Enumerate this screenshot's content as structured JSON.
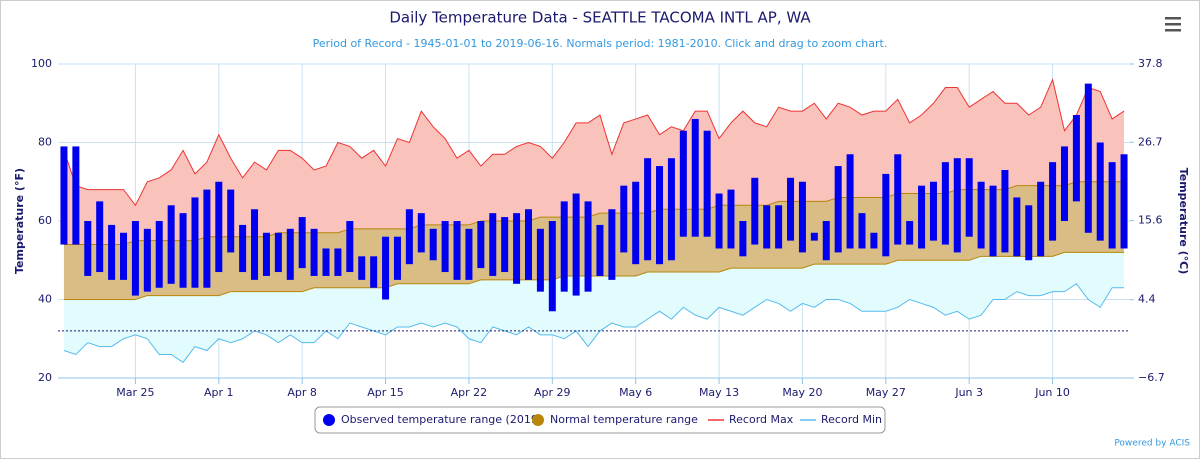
{
  "chart_data": {
    "type": "range",
    "title": "Daily Temperature Data - SEATTLE TACOMA INTL AP, WA",
    "subtitle": "Period of Record - 1945-01-01 to 2019-06-16. Normals period: 1981-2010. Click and drag to zoom chart.",
    "ylabel": "Temperature (°F)",
    "y2label": "Temperature (°C)",
    "credit": "Powered by ACIS",
    "categories": [
      null,
      null,
      null,
      null,
      null,
      null,
      "Mar 25",
      null,
      null,
      null,
      null,
      null,
      null,
      "Apr 1",
      null,
      null,
      null,
      null,
      null,
      null,
      "Apr 8",
      null,
      null,
      null,
      null,
      null,
      null,
      "Apr 15",
      null,
      null,
      null,
      null,
      null,
      null,
      "Apr 22",
      null,
      null,
      null,
      null,
      null,
      null,
      "Apr 29",
      null,
      null,
      null,
      null,
      null,
      null,
      "May 6",
      null,
      null,
      null,
      null,
      null,
      null,
      "May 13",
      null,
      null,
      null,
      null,
      null,
      null,
      "May 20",
      null,
      null,
      null,
      null,
      null,
      null,
      "May 27",
      null,
      null,
      null,
      null,
      null,
      null,
      "Jun 3",
      null,
      null,
      null,
      null,
      null,
      null,
      "Jun 10",
      null,
      null,
      null,
      null,
      null,
      null
    ],
    "ylim": [
      20,
      100
    ],
    "yticks": [
      20,
      40,
      60,
      80,
      100
    ],
    "y2lim": [
      -6.7,
      37.8
    ],
    "y2ticks": [
      {
        "value": -6.7,
        "label": "−6.7"
      },
      4.4,
      15.6,
      26.7,
      37.8
    ],
    "grid": true,
    "reference_line": 32,
    "series": [
      {
        "name": "Observed temperature range (2019)",
        "color": "#0000ee",
        "kind": "bars",
        "low": [
          54,
          54,
          46,
          47,
          45,
          45,
          41,
          42,
          43,
          44,
          43,
          43,
          43,
          47,
          52,
          47,
          45,
          46,
          47,
          45,
          48,
          46,
          46,
          46,
          47,
          45,
          43,
          40,
          45,
          49,
          52,
          50,
          47,
          45,
          45,
          48,
          46,
          47,
          44,
          45,
          42,
          37,
          42,
          41,
          42,
          46,
          45,
          52,
          49,
          50,
          49,
          50,
          56,
          56,
          56,
          53,
          53,
          51,
          54,
          53,
          53,
          55,
          52,
          55,
          50,
          52,
          53,
          53,
          53,
          51,
          54,
          54,
          53,
          55,
          54,
          52,
          56,
          53,
          51,
          52,
          51,
          50,
          51,
          55,
          60,
          65,
          57,
          55,
          53,
          53
        ],
        "high": [
          79,
          79,
          60,
          65,
          59,
          57,
          60,
          58,
          60,
          64,
          62,
          66,
          68,
          70,
          68,
          59,
          63,
          57,
          57,
          58,
          61,
          58,
          53,
          53,
          60,
          51,
          51,
          56,
          56,
          63,
          62,
          58,
          60,
          60,
          58,
          60,
          62,
          61,
          62,
          63,
          58,
          60,
          65,
          67,
          65,
          59,
          63,
          69,
          70,
          76,
          74,
          76,
          83,
          86,
          83,
          67,
          68,
          60,
          71,
          64,
          64,
          71,
          70,
          57,
          60,
          74,
          77,
          62,
          57,
          72,
          77,
          60,
          69,
          70,
          75,
          76,
          76,
          70,
          69,
          73,
          66,
          64,
          70,
          75,
          79,
          87,
          95,
          80,
          75,
          77
        ]
      },
      {
        "name": "Normal temperature range",
        "color": "#b8860b",
        "fill": "#d9bd84",
        "kind": "band",
        "low": [
          40,
          40,
          40,
          40,
          40,
          40,
          40,
          41,
          41,
          41,
          41,
          41,
          41,
          41,
          42,
          42,
          42,
          42,
          42,
          42,
          42,
          43,
          43,
          43,
          43,
          43,
          43,
          43,
          44,
          44,
          44,
          44,
          44,
          44,
          44,
          45,
          45,
          45,
          45,
          45,
          45,
          45,
          46,
          46,
          46,
          46,
          46,
          46,
          46,
          47,
          47,
          47,
          47,
          47,
          47,
          47,
          48,
          48,
          48,
          48,
          48,
          48,
          48,
          49,
          49,
          49,
          49,
          49,
          49,
          49,
          50,
          50,
          50,
          50,
          50,
          50,
          50,
          51,
          51,
          51,
          51,
          51,
          51,
          51,
          52,
          52,
          52,
          52,
          52,
          52
        ],
        "high": [
          54,
          54,
          54,
          54,
          54,
          54,
          55,
          55,
          55,
          55,
          55,
          55,
          56,
          56,
          56,
          56,
          56,
          56,
          57,
          57,
          57,
          57,
          57,
          57,
          58,
          58,
          58,
          58,
          58,
          58,
          59,
          59,
          59,
          59,
          59,
          60,
          60,
          60,
          60,
          60,
          61,
          61,
          61,
          61,
          61,
          62,
          62,
          62,
          62,
          62,
          63,
          63,
          63,
          63,
          63,
          64,
          64,
          64,
          64,
          64,
          65,
          65,
          65,
          65,
          65,
          66,
          66,
          66,
          66,
          66,
          67,
          67,
          67,
          67,
          67,
          68,
          68,
          68,
          68,
          68,
          69,
          69,
          69,
          69,
          69,
          70,
          70,
          70,
          70,
          70
        ]
      },
      {
        "name": "Record Max",
        "color": "#ee3333",
        "fill": "#f9c2bb",
        "kind": "line",
        "values": [
          78,
          69,
          68,
          68,
          68,
          68,
          64,
          70,
          71,
          73,
          78,
          72,
          75,
          82,
          76,
          71,
          75,
          73,
          78,
          78,
          76,
          73,
          74,
          80,
          79,
          76,
          78,
          74,
          81,
          80,
          88,
          84,
          81,
          76,
          78,
          74,
          77,
          77,
          79,
          80,
          79,
          76,
          80,
          85,
          85,
          87,
          77,
          85,
          86,
          87,
          82,
          84,
          83,
          88,
          88,
          81,
          85,
          88,
          85,
          84,
          89,
          88,
          88,
          90,
          86,
          90,
          89,
          87,
          88,
          88,
          91,
          85,
          87,
          90,
          94,
          94,
          89,
          91,
          93,
          90,
          90,
          87,
          89,
          96,
          83,
          87,
          94,
          93,
          86,
          88
        ]
      },
      {
        "name": "Record Min",
        "color": "#55bbee",
        "fill": "#e2fcfd",
        "kind": "line",
        "values": [
          27,
          26,
          29,
          28,
          28,
          30,
          31,
          30,
          26,
          26,
          24,
          28,
          27,
          30,
          29,
          30,
          32,
          31,
          29,
          31,
          29,
          29,
          32,
          30,
          34,
          33,
          32,
          31,
          33,
          33,
          34,
          33,
          34,
          33,
          30,
          29,
          33,
          32,
          31,
          33,
          31,
          31,
          30,
          32,
          28,
          32,
          34,
          33,
          33,
          35,
          37,
          35,
          38,
          36,
          35,
          38,
          37,
          36,
          38,
          40,
          39,
          37,
          39,
          38,
          40,
          40,
          39,
          37,
          37,
          37,
          38,
          40,
          39,
          38,
          36,
          37,
          35,
          36,
          40,
          40,
          42,
          41,
          41,
          42,
          42,
          44,
          40,
          38,
          43,
          43
        ]
      }
    ]
  }
}
